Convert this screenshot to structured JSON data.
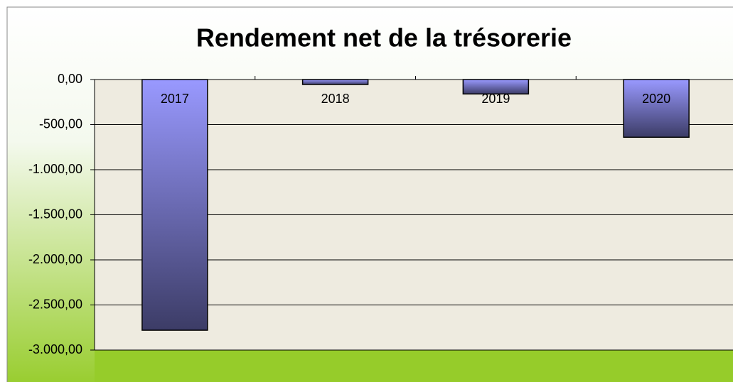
{
  "chart_data": {
    "type": "bar",
    "title": "Rendement net de la trésorerie",
    "categories": [
      "2017",
      "2018",
      "2019",
      "2020"
    ],
    "values": [
      -2780,
      -55,
      -160,
      -640
    ],
    "color": "#9999ff",
    "ylim": [
      -3000,
      0
    ],
    "yticks": [
      {
        "value": 0,
        "label": "0,00"
      },
      {
        "value": -500,
        "label": "-500,00"
      },
      {
        "value": -1000,
        "label": "-1.000,00"
      },
      {
        "value": -1500,
        "label": "-1.500,00"
      },
      {
        "value": -2000,
        "label": "-2.000,00"
      },
      {
        "value": -2500,
        "label": "-2.500,00"
      },
      {
        "value": -3000,
        "label": "-3.000,00"
      }
    ],
    "grid": true
  }
}
